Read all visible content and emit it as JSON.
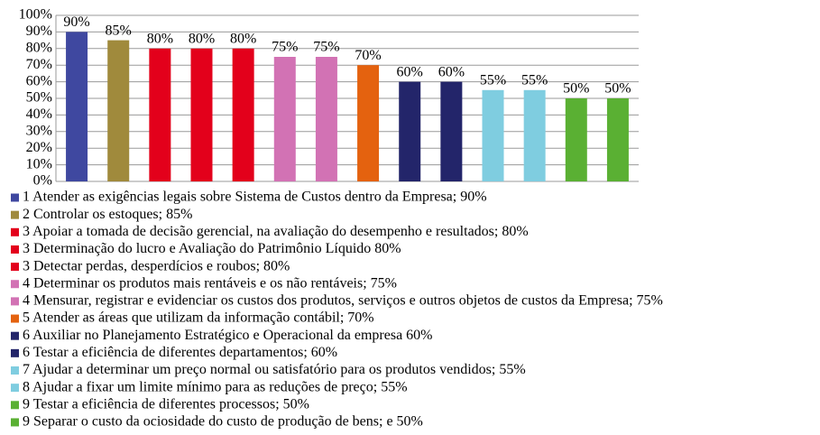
{
  "chart_data": {
    "type": "bar",
    "categories": [
      "1 Atender as exigências legais sobre Sistema de Custos dentro da Empresa; 90%",
      "2 Controlar os estoques; 85%",
      "3 Apoiar a tomada de decisão gerencial, na avaliação do desempenho e resultados; 80%",
      "3 Determinação do lucro e Avaliação do Patrimônio Líquido 80%",
      "3 Detectar perdas, desperdícios e roubos; 80%",
      "4 Determinar os produtos mais rentáveis e os não rentáveis; 75%",
      "4 Mensurar, registrar e evidenciar os custos dos produtos, serviços e outros objetos de custos da Empresa; 75%",
      "5 Atender as áreas que utilizam da informação contábil;  70%",
      "6 Auxiliar no Planejamento Estratégico e Operacional da empresa 60%",
      "6 Testar a eficiência de diferentes departamentos; 60%",
      "7 Ajudar a determinar um preço normal ou satisfatório para os produtos vendidos; 55%",
      "8 Ajudar a fixar um limite mínimo para as reduções de preço; 55%",
      "9 Testar a eficiência de diferentes processos; 50%",
      "9 Separar o custo da ociosidade do custo de produção de bens; e 50%"
    ],
    "values": [
      90,
      85,
      80,
      80,
      80,
      75,
      75,
      70,
      60,
      60,
      55,
      55,
      50,
      50
    ],
    "value_labels": [
      "90%",
      "85%",
      "80%",
      "80%",
      "80%",
      "75%",
      "75%",
      "70%",
      "60%",
      "60%",
      "55%",
      "55%",
      "50%",
      "50%"
    ],
    "colors": [
      "#3f48a0",
      "#a08a3c",
      "#e3001b",
      "#e3001b",
      "#e3001b",
      "#d272b4",
      "#d272b4",
      "#e4620f",
      "#23256a",
      "#23256a",
      "#7fcde0",
      "#7fcde0",
      "#5ab033",
      "#5ab033"
    ],
    "ylim": [
      0,
      100
    ],
    "yticks": [
      {
        "value": 0,
        "label": "0%"
      },
      {
        "value": 10,
        "label": "10%"
      },
      {
        "value": 20,
        "label": "20%"
      },
      {
        "value": 30,
        "label": "30%"
      },
      {
        "value": 40,
        "label": "40%"
      },
      {
        "value": 50,
        "label": "50%"
      },
      {
        "value": 60,
        "label": "60%"
      },
      {
        "value": 70,
        "label": "70%"
      },
      {
        "value": 80,
        "label": "80%"
      },
      {
        "value": 90,
        "label": "90%"
      },
      {
        "value": 100,
        "label": "100%"
      }
    ],
    "grid": true
  }
}
